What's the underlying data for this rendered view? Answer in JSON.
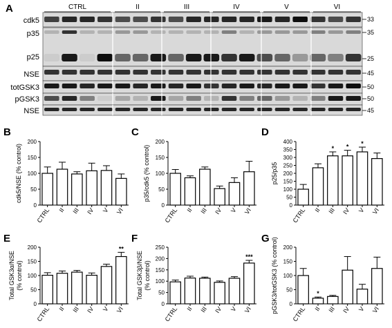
{
  "western_blot": {
    "panel_letter": "A",
    "groups": [
      "CTRL",
      "II",
      "III",
      "IV",
      "V",
      "VI"
    ],
    "rows": [
      {
        "label": "cdk5",
        "markers": [
          "33"
        ]
      },
      {
        "label": "p35",
        "markers": [
          "35"
        ]
      },
      {
        "label": "p25",
        "markers": [
          "25"
        ]
      },
      {
        "label": "NSE",
        "markers": [
          "45"
        ]
      },
      {
        "label": "totGSK3",
        "markers": [
          "50"
        ]
      },
      {
        "label": "pGSK3",
        "markers": [
          "50"
        ]
      },
      {
        "label": "NSE",
        "markers": [
          "45"
        ]
      }
    ]
  },
  "chart_data": [
    {
      "panel": "B",
      "type": "bar",
      "ylabel": "cdk5/NSE (% control)",
      "categories": [
        "CTRL",
        "II",
        "III",
        "IV",
        "V",
        "VI"
      ],
      "values": [
        100,
        113,
        98,
        108,
        109,
        84
      ],
      "errors": [
        20,
        22,
        7,
        24,
        15,
        14
      ],
      "ylim": [
        0,
        200
      ],
      "yticks": [
        "0",
        "50",
        "100",
        "150",
        "200"
      ],
      "significance": [
        "",
        "",
        "",
        "",
        "",
        ""
      ]
    },
    {
      "panel": "C",
      "type": "bar",
      "ylabel": "p35/cdk5 (% control)",
      "categories": [
        "CTRL",
        "II",
        "III",
        "IV",
        "V",
        "VI"
      ],
      "values": [
        100,
        86,
        113,
        52,
        71,
        105
      ],
      "errors": [
        12,
        6,
        7,
        8,
        15,
        33
      ],
      "ylim": [
        0,
        200
      ],
      "yticks": [
        "0",
        "50",
        "100",
        "150",
        "200"
      ],
      "significance": [
        "",
        "",
        "",
        "",
        "",
        ""
      ]
    },
    {
      "panel": "D",
      "type": "bar",
      "ylabel": "p25/p35",
      "categories": [
        "CTRL",
        "II",
        "III",
        "IV",
        "V",
        "VI"
      ],
      "values": [
        100,
        235,
        310,
        310,
        335,
        293
      ],
      "errors": [
        30,
        25,
        25,
        35,
        30,
        35
      ],
      "ylim": [
        0,
        400
      ],
      "yticks": [
        "0",
        "50",
        "100",
        "150",
        "200",
        "250",
        "300",
        "350",
        "400"
      ],
      "significance": [
        "",
        "",
        "*",
        "*",
        "*",
        ""
      ]
    },
    {
      "panel": "E",
      "type": "bar",
      "ylabel": "Total GSK3α/NSE (% control)",
      "categories": [
        "CTRL",
        "II",
        "III",
        "IV",
        "V",
        "VI"
      ],
      "values": [
        101,
        108,
        112,
        101,
        132,
        167
      ],
      "errors": [
        9,
        8,
        6,
        8,
        8,
        15
      ],
      "ylim": [
        0,
        200
      ],
      "yticks": [
        "0",
        "50",
        "100",
        "150",
        "200"
      ],
      "significance": [
        "",
        "",
        "",
        "",
        "",
        "**"
      ]
    },
    {
      "panel": "F",
      "type": "bar",
      "ylabel": "Total GSK3β/NSE (% control)",
      "categories": [
        "CTRL",
        "II",
        "III",
        "IV",
        "V",
        "VI"
      ],
      "values": [
        97,
        114,
        113,
        95,
        113,
        180
      ],
      "errors": [
        8,
        8,
        5,
        6,
        7,
        12
      ],
      "ylim": [
        0,
        250
      ],
      "yticks": [
        "0",
        "50",
        "100",
        "150",
        "200",
        "250"
      ],
      "significance": [
        "",
        "",
        "",
        "",
        "",
        "***"
      ]
    },
    {
      "panel": "G",
      "type": "bar",
      "ylabel": "pGSK3/totGSK3 (% control)",
      "categories": [
        "CTRL",
        "II",
        "III",
        "IV",
        "V",
        "VI"
      ],
      "values": [
        100,
        20,
        26,
        119,
        52,
        125
      ],
      "errors": [
        25,
        4,
        4,
        48,
        17,
        40
      ],
      "ylim": [
        0,
        200
      ],
      "yticks": [
        "0",
        "50",
        "100",
        "150",
        "200"
      ],
      "significance": [
        "",
        "*",
        "",
        "",
        "",
        ""
      ]
    }
  ]
}
